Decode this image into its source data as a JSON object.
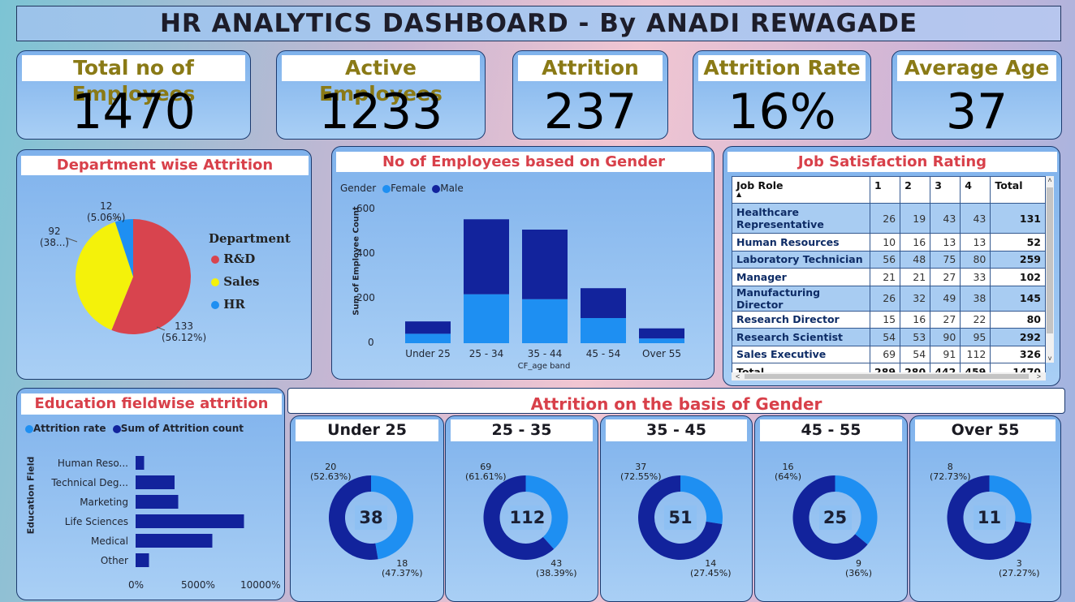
{
  "title": "HR ANALYTICS DASHBOARD - By ANADI REWAGADE",
  "kpis": [
    {
      "label": "Total no of Employees",
      "value": "1470"
    },
    {
      "label": "Active Employees",
      "value": "1233"
    },
    {
      "label": "Attrition",
      "value": "237"
    },
    {
      "label": "Attrition Rate",
      "value": "16%"
    },
    {
      "label": "Average Age",
      "value": "37"
    }
  ],
  "colors": {
    "rd": "#d8444e",
    "sales": "#f4f20a",
    "hr": "#1e8ff2",
    "female": "#1e8ff2",
    "male": "#12239c"
  },
  "dept": {
    "title": "Department wise Attrition",
    "legend_title": "Department",
    "legend": [
      "R&D",
      "Sales",
      "HR"
    ],
    "labels": {
      "rd": "133",
      "rd_pct": "(56.12%)",
      "sales": "92",
      "sales_pct": "(38...)",
      "hr": "12",
      "hr_pct": "(5.06%)"
    }
  },
  "gender": {
    "title": "No of Employees based on Gender",
    "legend_title": "Gender",
    "legend": [
      "Female",
      "Male"
    ],
    "ylabel": "Sum of Employee Count",
    "xlabel": "CF_age band",
    "yticks": [
      "600",
      "400",
      "200",
      "0"
    ]
  },
  "job": {
    "title": "Job Satisfaction Rating",
    "headers": [
      "Job Role",
      "1",
      "2",
      "3",
      "4",
      "Total"
    ],
    "rows": [
      [
        "Healthcare Representative",
        "26",
        "19",
        "43",
        "43",
        "131"
      ],
      [
        "Human Resources",
        "10",
        "16",
        "13",
        "13",
        "52"
      ],
      [
        "Laboratory Technician",
        "56",
        "48",
        "75",
        "80",
        "259"
      ],
      [
        "Manager",
        "21",
        "21",
        "27",
        "33",
        "102"
      ],
      [
        "Manufacturing Director",
        "26",
        "32",
        "49",
        "38",
        "145"
      ],
      [
        "Research Director",
        "15",
        "16",
        "27",
        "22",
        "80"
      ],
      [
        "Research Scientist",
        "54",
        "53",
        "90",
        "95",
        "292"
      ],
      [
        "Sales Executive",
        "69",
        "54",
        "91",
        "112",
        "326"
      ]
    ],
    "total": [
      "Total",
      "289",
      "280",
      "442",
      "459",
      "1470"
    ],
    "scroll_left": "<",
    "scroll_right": ">"
  },
  "edu": {
    "title": "Education fieldwise attrition",
    "legend": [
      "Attrition rate",
      "Sum of Attrition count"
    ],
    "ylabel": "Education Field",
    "xticks": [
      "0%",
      "5000%",
      "10000%"
    ]
  },
  "gender_att": {
    "title": "Attrition on the basis of Gender",
    "donuts": [
      {
        "title": "Under 25",
        "center": "38",
        "male": "20",
        "male_pct": "(52.63%)",
        "female": "18",
        "female_pct": "(47.37%)"
      },
      {
        "title": "25 - 35",
        "center": "112",
        "male": "69",
        "male_pct": "(61.61%)",
        "female": "43",
        "female_pct": "(38.39%)"
      },
      {
        "title": "35 - 45",
        "center": "51",
        "male": "37",
        "male_pct": "(72.55%)",
        "female": "14",
        "female_pct": "(27.45%)"
      },
      {
        "title": "45 - 55",
        "center": "25",
        "male": "16",
        "male_pct": "(64%)",
        "female": "9",
        "female_pct": "(36%)"
      },
      {
        "title": "Over 55",
        "center": "11",
        "male": "8",
        "male_pct": "(72.73%)",
        "female": "3",
        "female_pct": "(27.27%)"
      }
    ]
  },
  "chart_data": [
    {
      "type": "pie",
      "title": "Department wise Attrition",
      "categories": [
        "R&D",
        "Sales",
        "HR"
      ],
      "values": [
        133,
        92,
        12
      ]
    },
    {
      "type": "bar",
      "title": "No of Employees based on Gender",
      "categories": [
        "Under 25",
        "25 - 34",
        "35 - 44",
        "45 - 54",
        "Over 55"
      ],
      "series": [
        {
          "name": "Female",
          "values": [
            42,
            218,
            196,
            112,
            21
          ]
        },
        {
          "name": "Male",
          "values": [
            55,
            334,
            310,
            133,
            45
          ]
        }
      ],
      "xlabel": "CF_age band",
      "ylabel": "Sum of Employee Count",
      "ylim": [
        0,
        600
      ]
    },
    {
      "type": "bar",
      "title": "Education fieldwise attrition",
      "categories": [
        "Human Reso...",
        "Technical Deg...",
        "Marketing",
        "Life Sciences",
        "Medical",
        "Other"
      ],
      "series": [
        {
          "name": "Sum of Attrition count",
          "values": [
            7,
            32,
            35,
            89,
            63,
            11
          ]
        }
      ],
      "xlabel": "",
      "ylabel": "Education Field"
    },
    {
      "type": "pie",
      "title": "Attrition on the basis of Gender",
      "categories": [
        "Under 25",
        "25 - 35",
        "35 - 45",
        "45 - 55",
        "Over 55"
      ],
      "series": [
        {
          "values": [
            20,
            69,
            37,
            16,
            8
          ]
        },
        {
          "values": [
            18,
            43,
            14,
            9,
            3
          ]
        }
      ]
    }
  ]
}
